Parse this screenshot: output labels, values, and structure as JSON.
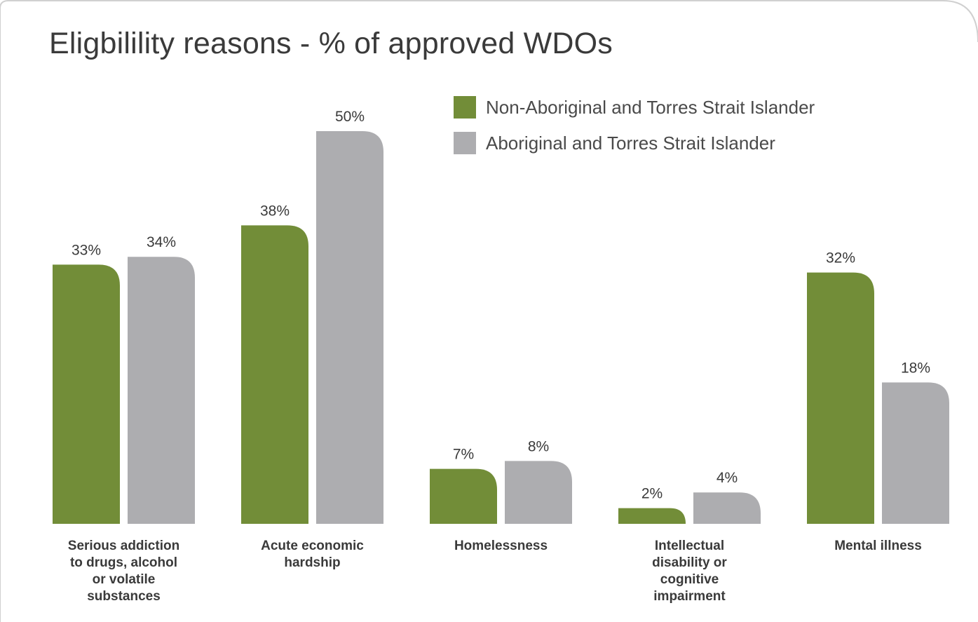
{
  "chart_data": {
    "type": "bar",
    "title": "Eligbilility reasons - % of approved WDOs",
    "categories": [
      [
        "Serious addiction",
        "to drugs, alcohol",
        "or volatile",
        "substances"
      ],
      [
        "Acute economic",
        "hardship"
      ],
      [
        "Homelessness"
      ],
      [
        "Intellectual",
        "disability or",
        "cognitive",
        "impairment"
      ],
      [
        "Mental illness"
      ]
    ],
    "series": [
      {
        "name": "Non-Aboriginal and Torres Strait Islander",
        "color": "#728d38",
        "values": [
          33,
          38,
          7,
          2,
          32
        ],
        "labels": [
          "33%",
          "38%",
          "7%",
          "2%",
          "32%"
        ]
      },
      {
        "name": " Aboriginal and Torres Strait Islander",
        "color": "#adadb0",
        "values": [
          34,
          50,
          8,
          4,
          18
        ],
        "labels": [
          "34%",
          "50%",
          "8%",
          "4%",
          "18%"
        ]
      }
    ],
    "ylim": [
      0,
      50
    ],
    "xlabel": "",
    "ylabel": "",
    "grid": false,
    "legend": "top-right"
  }
}
